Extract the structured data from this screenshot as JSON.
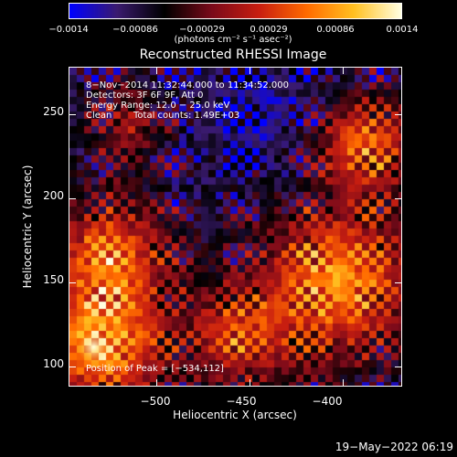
{
  "chart_data": {
    "type": "heatmap",
    "title": "Reconstructed RHESSI Image",
    "xlabel": "Heliocentric X (arcsec)",
    "ylabel": "Heliocentric Y (arcsec)",
    "xlim": [
      -547,
      -368
    ],
    "ylim": [
      88,
      278
    ],
    "xticks": [
      "−500",
      "−450",
      "−400"
    ],
    "xtick_values": [
      -500,
      -450,
      -400
    ],
    "yticks": [
      "100",
      "150",
      "200",
      "250"
    ],
    "ytick_values": [
      100,
      150,
      200,
      250
    ],
    "colorbar": {
      "tick_labels": [
        "−0.0014",
        "−0.00086",
        "−0.00029",
        "0.00029",
        "0.00086",
        "0.0014"
      ],
      "tick_values": [
        -0.0014,
        -0.00086,
        -0.00029,
        0.00029,
        0.00086,
        0.0014
      ],
      "range": [
        -0.0014,
        0.0014
      ],
      "units": "(photons cm⁻² s⁻¹ asec⁻²)",
      "colormap": [
        "#0000ff",
        "#3a1a6e",
        "#000000",
        "#7a0a1a",
        "#c81e10",
        "#ff6a00",
        "#ffc020",
        "#ffffe0"
      ]
    },
    "annotations": {
      "time_range": "8−Nov−2014 11:32:44.000 to 11:34:52.000",
      "detectors": "Detectors: 3F 6F 9F, Att 0",
      "energy": "Energy Range: 12.0 − 25.0 keV",
      "method": "Clean",
      "counts": "Total counts: 1.49E+03",
      "peak": "Position of Peak = [−534,112]"
    },
    "peak_position": [
      -534,
      112
    ]
  },
  "footer": {
    "datestamp": "19−May−2022 06:19"
  }
}
